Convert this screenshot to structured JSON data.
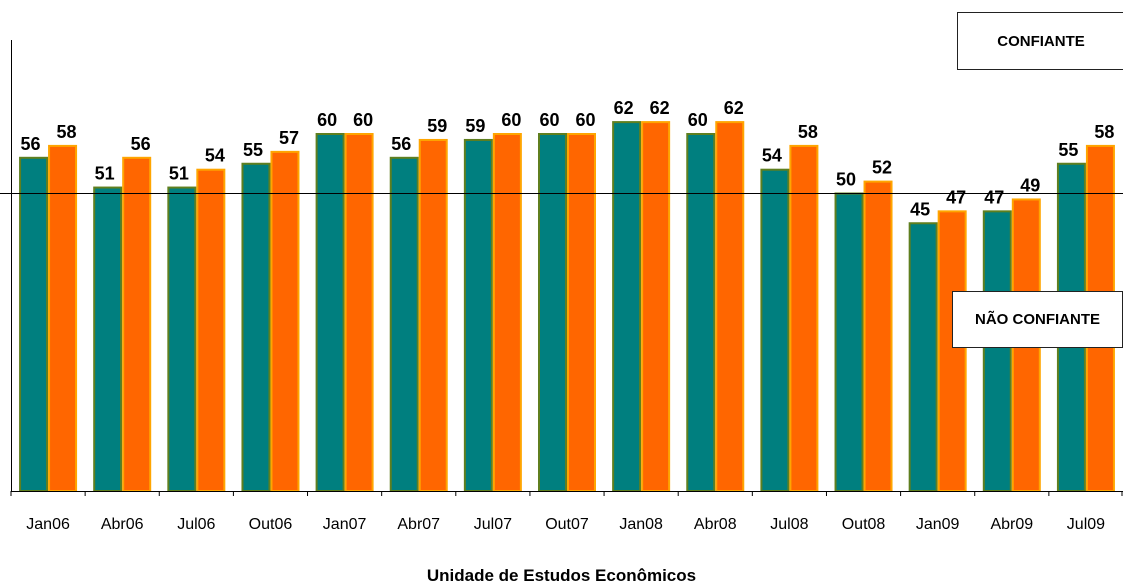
{
  "chart_data": {
    "type": "bar",
    "categories": [
      "Jan06",
      "Abr06",
      "Jul06",
      "Out06",
      "Jan07",
      "Abr07",
      "Jul07",
      "Out07",
      "Jan08",
      "Abr08",
      "Jul08",
      "Out08",
      "Jan09",
      "Abr09",
      "Jul09"
    ],
    "series": [
      {
        "values": [
          56,
          51,
          51,
          55,
          60,
          56,
          59,
          60,
          62,
          60,
          54,
          50,
          45,
          47,
          55
        ],
        "color": "#007f7f",
        "border": "#5f7f1f"
      },
      {
        "values": [
          58,
          56,
          54,
          57,
          60,
          59,
          60,
          60,
          62,
          62,
          58,
          52,
          47,
          49,
          58
        ],
        "color": "#ff6600",
        "border": "#ffa500"
      }
    ],
    "reference_line": 50,
    "ylim": [
      0,
      100
    ],
    "title": "",
    "xlabel": "",
    "ylabel": "",
    "grid": false,
    "labels": {
      "above": "CONFIANTE",
      "below": "NÃO CONFIANTE"
    }
  },
  "footer": "Unidade de Estudos Econômicos"
}
